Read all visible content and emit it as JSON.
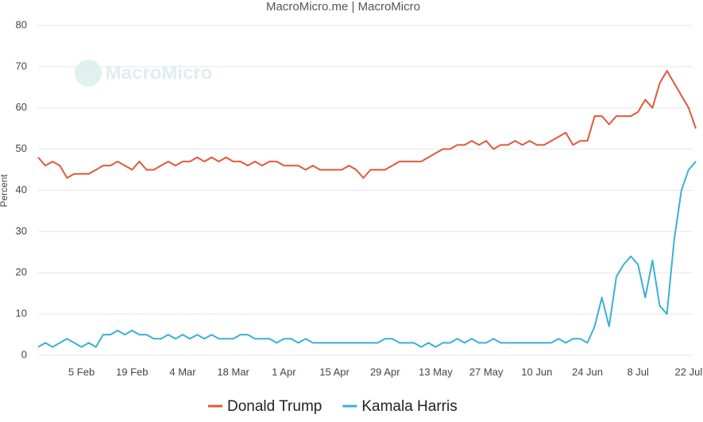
{
  "chart_data": {
    "type": "line",
    "title": "MacroMicro.me | MacroMicro",
    "watermark": "MacroMicro",
    "y_label": "Percent",
    "categories": [
      null,
      null,
      null,
      null,
      null,
      null,
      "5 Feb",
      null,
      null,
      null,
      null,
      null,
      null,
      "19 Feb",
      null,
      null,
      null,
      null,
      null,
      null,
      "4 Mar",
      null,
      null,
      null,
      null,
      null,
      null,
      "18 Mar",
      null,
      null,
      null,
      null,
      null,
      null,
      "1 Apr",
      null,
      null,
      null,
      null,
      null,
      null,
      "15 Apr",
      null,
      null,
      null,
      null,
      null,
      null,
      "29 Apr",
      null,
      null,
      null,
      null,
      null,
      null,
      "13 May",
      null,
      null,
      null,
      null,
      null,
      null,
      "27 May",
      null,
      null,
      null,
      null,
      null,
      null,
      "10 Jun",
      null,
      null,
      null,
      null,
      null,
      null,
      "24 Jun",
      null,
      null,
      null,
      null,
      null,
      null,
      "8 Jul",
      null,
      null,
      null,
      null,
      null,
      null,
      "22 Jul",
      null
    ],
    "series": [
      {
        "name": "Donald Trump",
        "color": "#e0583a",
        "values": [
          48,
          46,
          47,
          46,
          43,
          44,
          44,
          44,
          45,
          46,
          46,
          47,
          46,
          45,
          47,
          45,
          45,
          46,
          47,
          46,
          47,
          47,
          48,
          47,
          48,
          47,
          48,
          47,
          47,
          46,
          47,
          46,
          47,
          47,
          46,
          46,
          46,
          45,
          46,
          45,
          45,
          45,
          45,
          46,
          45,
          43,
          45,
          45,
          45,
          46,
          47,
          47,
          47,
          47,
          48,
          49,
          50,
          50,
          51,
          51,
          52,
          51,
          52,
          50,
          51,
          51,
          52,
          51,
          52,
          51,
          51,
          52,
          53,
          54,
          51,
          52,
          52,
          58,
          58,
          56,
          58,
          58,
          58,
          59,
          62,
          60,
          66,
          69,
          66,
          63,
          60,
          55
        ]
      },
      {
        "name": "Kamala Harris",
        "color": "#3ab0d6",
        "values": [
          2,
          3,
          2,
          3,
          4,
          3,
          2,
          3,
          2,
          5,
          5,
          6,
          5,
          6,
          5,
          5,
          4,
          4,
          5,
          4,
          5,
          4,
          5,
          4,
          5,
          4,
          4,
          4,
          5,
          5,
          4,
          4,
          4,
          3,
          4,
          4,
          3,
          4,
          3,
          3,
          3,
          3,
          3,
          3,
          3,
          3,
          3,
          3,
          4,
          4,
          3,
          3,
          3,
          2,
          3,
          2,
          3,
          3,
          4,
          3,
          4,
          3,
          3,
          4,
          3,
          3,
          3,
          3,
          3,
          3,
          3,
          3,
          4,
          3,
          4,
          4,
          3,
          7,
          14,
          7,
          19,
          22,
          24,
          22,
          14,
          23,
          12,
          10,
          28,
          40,
          45,
          47
        ]
      }
    ],
    "ylim": [
      0,
      80
    ],
    "yticks": [
      0,
      10,
      20,
      30,
      40,
      50,
      60,
      70,
      80
    ],
    "grid": true
  }
}
